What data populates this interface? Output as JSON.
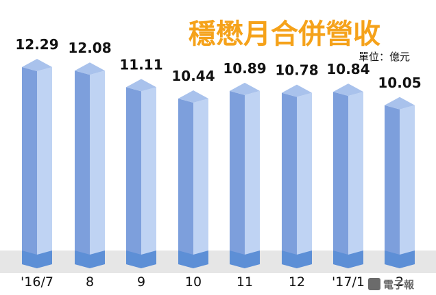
{
  "chart_data": {
    "type": "bar",
    "title": "穩懋月合併營收",
    "unit_label": "單位：億元",
    "categories": [
      "'16/7",
      "8",
      "9",
      "10",
      "11",
      "12",
      "'17/1",
      "2"
    ],
    "values": [
      12.29,
      12.08,
      11.11,
      10.44,
      10.89,
      10.78,
      10.84,
      10.05
    ],
    "value_labels": [
      "12.29",
      "12.08",
      "11.11",
      "10.44",
      "10.89",
      "10.78",
      "10.84",
      "10.05"
    ],
    "ylim": [
      0,
      12.29
    ],
    "xlabel": "",
    "ylabel": "",
    "grid": false,
    "legend": "none"
  },
  "colors": {
    "title": "#f5a21a",
    "bar_front": "#7d9fdc",
    "bar_side": "#bfd3f3",
    "bar_top": "#a9c2ec",
    "bar_base": "#5d8fd6",
    "base_band": "#e6e6e6",
    "text": "#111111"
  },
  "watermark": {
    "text": "電子報",
    "icon": "newspaper-logo-icon"
  }
}
